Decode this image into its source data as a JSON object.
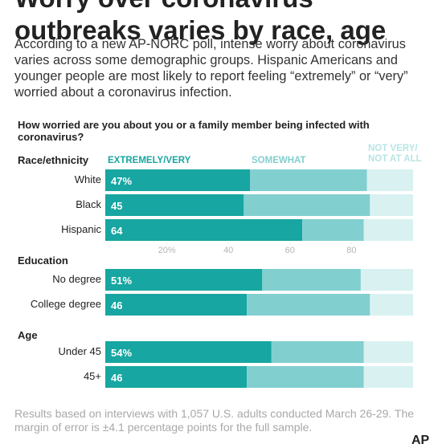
{
  "title": "Worry over coronavirus outbreaks varies by race, age",
  "intro": "According to a new AP-NORC poll, intense worry about coronavirus varies across some demographic groups. Hispanic Americans and younger people are most likely to report feeling “extremely” or “very” worried about a coronavirus infection.",
  "footnote": "Results based on interviews with 1,057 U.S. adults conducted March 26-29. The margin of error is ±4.1 percentage points for the full sample.",
  "credit": "AP",
  "chart_data": {
    "type": "bar",
    "stacked": true,
    "orientation": "horizontal",
    "question": "How worried are you about you or a family member being infected with coronavirus?",
    "xlim": [
      0,
      100
    ],
    "ticks": [
      "20%",
      "40",
      "60",
      "80"
    ],
    "tick_values": [
      20,
      40,
      60,
      80
    ],
    "series": [
      {
        "name": "EXTREMELY/VERY",
        "color": "#17a6a1"
      },
      {
        "name": "SOMEWHAT",
        "color": "#82cfcf"
      },
      {
        "name": "NOT VERY/ NOT AT ALL",
        "color": "#d9f1f1"
      }
    ],
    "groups": [
      {
        "name": "Race/ethnicity",
        "rows": [
          {
            "label": "White",
            "extremely_very": 47,
            "extremely_very_label": "47%",
            "somewhat": 38,
            "not_very": 15
          },
          {
            "label": "Black",
            "extremely_very": 45,
            "extremely_very_label": "45",
            "somewhat": 41,
            "not_very": 14
          },
          {
            "label": "Hispanic",
            "extremely_very": 64,
            "extremely_very_label": "64",
            "somewhat": 20,
            "not_very": 16
          }
        ]
      },
      {
        "name": "Education",
        "rows": [
          {
            "label": "No degree",
            "extremely_very": 51,
            "extremely_very_label": "51%",
            "somewhat": 32,
            "not_very": 17
          },
          {
            "label": "College degree",
            "extremely_very": 46,
            "extremely_very_label": "46",
            "somewhat": 40,
            "not_very": 14
          }
        ]
      },
      {
        "name": "Age",
        "rows": [
          {
            "label": "Under 45",
            "extremely_very": 54,
            "extremely_very_label": "54%",
            "somewhat": 30,
            "not_very": 16
          },
          {
            "label": "45+",
            "extremely_very": 46,
            "extremely_very_label": "46",
            "somewhat": 38,
            "not_very": 16
          }
        ]
      }
    ]
  }
}
